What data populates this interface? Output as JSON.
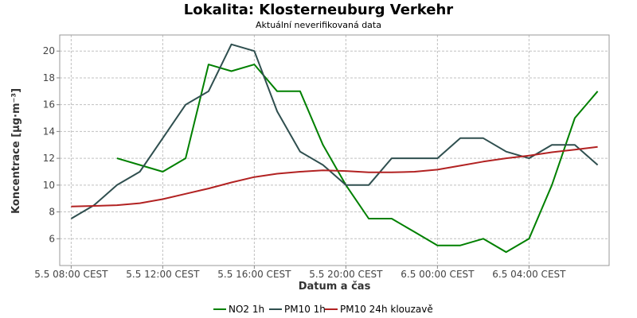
{
  "chart_data": {
    "type": "line",
    "title": "Lokalita: Klosterneuburg Verkehr",
    "subtitle": "Aktuální neverifikovaná data",
    "xlabel": "Datum a čas",
    "ylabel": "Koncentrace [µg·m⁻³]",
    "x_ticks": [
      {
        "h": 0,
        "label": "5.5 08:00 CEST"
      },
      {
        "h": 4,
        "label": "5.5 12:00 CEST"
      },
      {
        "h": 8,
        "label": "5.5 16:00 CEST"
      },
      {
        "h": 12,
        "label": "5.5 20:00 CEST"
      },
      {
        "h": 16,
        "label": "6.5 00:00 CEST"
      },
      {
        "h": 20,
        "label": "6.5 04:00 CEST"
      }
    ],
    "y_ticks": [
      6,
      8,
      10,
      12,
      14,
      16,
      18,
      20
    ],
    "xlim": [
      -0.5,
      23.5
    ],
    "ylim": [
      4.0,
      21.2
    ],
    "grid": true,
    "legend_position": "bottom",
    "series": [
      {
        "name": "NO2 1h",
        "color": "#008000",
        "points": [
          [
            2,
            12
          ],
          [
            3,
            11.5
          ],
          [
            4,
            11
          ],
          [
            5,
            12
          ],
          [
            6,
            19
          ],
          [
            7,
            18.5
          ],
          [
            8,
            19
          ],
          [
            9,
            17
          ],
          [
            10,
            17
          ],
          [
            11,
            13
          ],
          [
            12,
            10
          ],
          [
            13,
            7.5
          ],
          [
            14,
            7.5
          ],
          [
            15,
            6.5
          ],
          [
            16,
            5.5
          ],
          [
            17,
            5.5
          ],
          [
            18,
            6
          ],
          [
            19,
            5
          ],
          [
            20,
            6
          ],
          [
            21,
            10
          ],
          [
            22,
            15
          ],
          [
            23,
            17
          ]
        ]
      },
      {
        "name": "PM10 1h",
        "color": "#2f4f4f",
        "points": [
          [
            0,
            7.5
          ],
          [
            1,
            8.5
          ],
          [
            2,
            10
          ],
          [
            3,
            11
          ],
          [
            4,
            13.5
          ],
          [
            5,
            16
          ],
          [
            6,
            17
          ],
          [
            7,
            20.5
          ],
          [
            8,
            20
          ],
          [
            9,
            15.5
          ],
          [
            10,
            12.5
          ],
          [
            11,
            11.5
          ],
          [
            12,
            10
          ],
          [
            13,
            10
          ],
          [
            14,
            12
          ],
          [
            15,
            12
          ],
          [
            16,
            12
          ],
          [
            17,
            13.5
          ],
          [
            18,
            13.5
          ],
          [
            19,
            12.5
          ],
          [
            20,
            12
          ],
          [
            21,
            13
          ],
          [
            22,
            13
          ],
          [
            23,
            11.5
          ]
        ]
      },
      {
        "name": "PM10 24h klouzavě",
        "color": "#b22222",
        "points": [
          [
            0,
            8.4
          ],
          [
            1,
            8.45
          ],
          [
            2,
            8.5
          ],
          [
            3,
            8.65
          ],
          [
            4,
            8.95
          ],
          [
            5,
            9.35
          ],
          [
            6,
            9.75
          ],
          [
            7,
            10.2
          ],
          [
            8,
            10.6
          ],
          [
            9,
            10.85
          ],
          [
            10,
            11.0
          ],
          [
            11,
            11.1
          ],
          [
            12,
            11.05
          ],
          [
            13,
            10.95
          ],
          [
            14,
            10.95
          ],
          [
            15,
            11.0
          ],
          [
            16,
            11.15
          ],
          [
            17,
            11.45
          ],
          [
            18,
            11.75
          ],
          [
            19,
            12.0
          ],
          [
            20,
            12.2
          ],
          [
            21,
            12.45
          ],
          [
            22,
            12.65
          ],
          [
            23,
            12.85
          ]
        ]
      }
    ]
  }
}
